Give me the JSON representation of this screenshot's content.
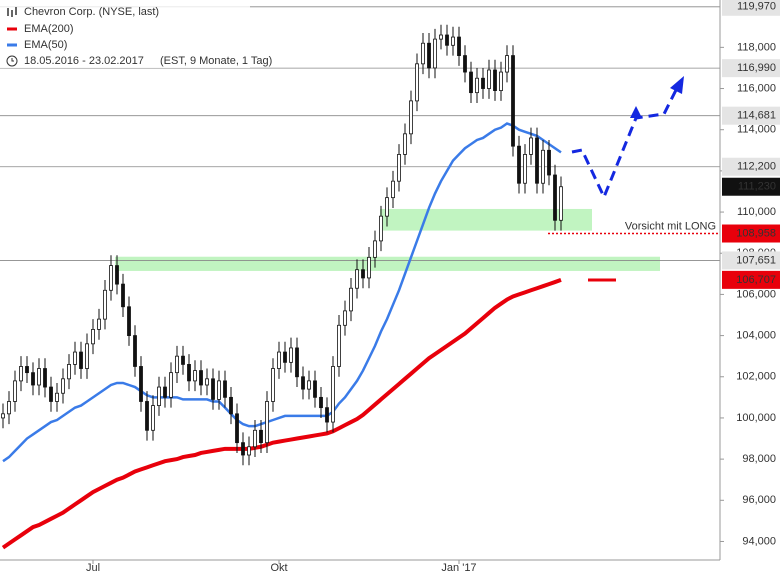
{
  "chart_data": {
    "type": "candlestick",
    "title": "Chevron Corp. (NYSE, last)",
    "subtitle": "18.05.2016 - 23.02.2017",
    "period_note": "(EST, 9 Monate, 1 Tag)",
    "categories": [
      null,
      null,
      null,
      null,
      null,
      null,
      null,
      null,
      null,
      null,
      null,
      null,
      null,
      null,
      null,
      "Jul",
      null,
      null,
      null,
      null,
      null,
      null,
      null,
      null,
      null,
      null,
      null,
      null,
      null,
      null,
      null,
      null,
      null,
      null,
      null,
      null,
      null,
      null,
      null,
      null,
      null,
      null,
      null,
      null,
      null,
      null,
      "Okt",
      null,
      null,
      null,
      null,
      null,
      null,
      null,
      null,
      null,
      null,
      null,
      null,
      null,
      null,
      null,
      null,
      null,
      null,
      null,
      null,
      null,
      null,
      null,
      null,
      null,
      null,
      null,
      null,
      null,
      "Jan '17",
      null,
      null,
      null,
      null,
      null,
      null,
      null,
      null,
      null,
      null,
      null,
      null,
      null,
      null,
      null,
      null,
      null
    ],
    "open": [
      100000,
      100200,
      100800,
      101800,
      102500,
      102200,
      101600,
      102400,
      101500,
      100800,
      101200,
      101900,
      102600,
      103200,
      102400,
      103600,
      104300,
      104800,
      106200,
      107400,
      106500,
      105400,
      104000,
      102500,
      100800,
      99400,
      100600,
      101500,
      101000,
      102200,
      103000,
      102600,
      101800,
      102300,
      101600,
      101900,
      100900,
      101800,
      101000,
      100200,
      98800,
      98200,
      98600,
      99400,
      98800,
      100800,
      102400,
      103200,
      102700,
      103400,
      102000,
      101400,
      101800,
      101000,
      100500,
      99800,
      102500,
      104500,
      105200,
      106300,
      107200,
      106800,
      107800,
      108600,
      109800,
      110700,
      111500,
      112800,
      113800,
      115400,
      117200,
      118200,
      117000,
      118400,
      118600,
      118100,
      118500,
      117600,
      116800,
      115800,
      116500,
      116000,
      116900,
      115900,
      116800,
      117600,
      113200,
      111400,
      112800,
      113600,
      111400,
      113000,
      111800,
      109600
    ],
    "high": [
      100700,
      101300,
      102300,
      103000,
      103000,
      102700,
      102900,
      102900,
      102000,
      101700,
      102400,
      103100,
      103700,
      103700,
      104100,
      104800,
      105300,
      106700,
      107900,
      107900,
      107000,
      105900,
      104500,
      103000,
      101300,
      101100,
      102000,
      102000,
      102700,
      103500,
      103500,
      103100,
      102800,
      102800,
      102400,
      102400,
      102300,
      102300,
      101500,
      100700,
      99300,
      99100,
      99900,
      99900,
      101300,
      102900,
      103700,
      103700,
      103900,
      103900,
      102500,
      102300,
      102300,
      101500,
      101000,
      103000,
      105000,
      105700,
      106800,
      107700,
      107700,
      108300,
      109100,
      110300,
      111200,
      112000,
      113300,
      114300,
      115900,
      117700,
      118700,
      118700,
      118900,
      119100,
      119100,
      119000,
      119000,
      118100,
      117300,
      117000,
      117000,
      117400,
      117400,
      117300,
      118100,
      118100,
      113700,
      113300,
      114100,
      114100,
      113500,
      113500,
      112300,
      111730
    ],
    "low": [
      99500,
      99700,
      100300,
      101300,
      101700,
      101100,
      101100,
      101000,
      100300,
      100300,
      100700,
      101400,
      102100,
      101900,
      101900,
      103100,
      103800,
      104300,
      105700,
      106000,
      104900,
      103500,
      102000,
      100300,
      98900,
      98900,
      100100,
      100500,
      100500,
      101700,
      102100,
      101300,
      101300,
      101100,
      101100,
      100400,
      100400,
      100500,
      99700,
      98300,
      97700,
      97700,
      98100,
      98300,
      98300,
      100300,
      101900,
      102200,
      102200,
      101500,
      100900,
      100900,
      100500,
      100000,
      99300,
      99300,
      102000,
      104000,
      104700,
      105800,
      106300,
      106300,
      107300,
      108100,
      109300,
      110200,
      111000,
      112300,
      113300,
      114900,
      116700,
      116500,
      116500,
      117900,
      117600,
      117600,
      117100,
      116300,
      115300,
      115300,
      115500,
      115500,
      115400,
      115400,
      116300,
      112700,
      110900,
      110900,
      112300,
      110900,
      110900,
      111300,
      109100,
      109100
    ],
    "close": [
      100200,
      100800,
      101800,
      102500,
      102200,
      101600,
      102400,
      101500,
      100800,
      101200,
      101900,
      102600,
      103200,
      102400,
      103600,
      104300,
      104800,
      106200,
      107400,
      106500,
      105400,
      104000,
      102500,
      100800,
      99400,
      100600,
      101500,
      101000,
      102200,
      103000,
      102600,
      101800,
      102300,
      101600,
      101900,
      100900,
      101800,
      101000,
      100200,
      98800,
      98200,
      98600,
      99400,
      98800,
      100800,
      102400,
      103200,
      102700,
      103400,
      102000,
      101400,
      101800,
      101000,
      100500,
      99800,
      102500,
      104500,
      105200,
      106300,
      107200,
      106800,
      107800,
      108600,
      109800,
      110700,
      111500,
      112800,
      113800,
      115400,
      117200,
      118200,
      117000,
      118400,
      118600,
      118100,
      118500,
      117600,
      116800,
      115800,
      116500,
      116000,
      116900,
      115900,
      116800,
      117600,
      113200,
      111400,
      112800,
      113600,
      111400,
      113000,
      111800,
      109600,
      111230
    ],
    "series": [
      {
        "name": "EMA(200)",
        "color": "#e8000b",
        "last_label": "106,707",
        "values": [
          93700,
          93900,
          94100,
          94300,
          94500,
          94700,
          94800,
          94950,
          95100,
          95250,
          95400,
          95600,
          95800,
          96000,
          96200,
          96400,
          96550,
          96700,
          96850,
          97000,
          97100,
          97250,
          97400,
          97500,
          97600,
          97700,
          97800,
          97900,
          97950,
          98000,
          98100,
          98150,
          98200,
          98300,
          98350,
          98400,
          98450,
          98500,
          98500,
          98500,
          98500,
          98500,
          98550,
          98600,
          98700,
          98800,
          98850,
          98900,
          98950,
          99000,
          99050,
          99100,
          99150,
          99200,
          99250,
          99350,
          99500,
          99650,
          99800,
          99950,
          100150,
          100400,
          100650,
          100900,
          101150,
          101400,
          101650,
          101900,
          102150,
          102400,
          102650,
          102900,
          103100,
          103300,
          103500,
          103700,
          103900,
          104100,
          104350,
          104600,
          104850,
          105100,
          105350,
          105550,
          105750,
          105900,
          106000,
          106100,
          106200,
          106300,
          106400,
          106500,
          106600,
          106707
        ]
      },
      {
        "name": "EMA(50)",
        "color": "#3a7be8",
        "values": [
          97900,
          98100,
          98400,
          98700,
          99000,
          99200,
          99400,
          99600,
          99800,
          99900,
          100100,
          100300,
          100500,
          100600,
          100800,
          101000,
          101200,
          101400,
          101600,
          101700,
          101700,
          101600,
          101500,
          101300,
          101100,
          101000,
          101000,
          101000,
          101000,
          101000,
          100900,
          100900,
          100900,
          100900,
          100900,
          100800,
          100800,
          100500,
          100200,
          99900,
          99700,
          99600,
          99600,
          99700,
          99800,
          99900,
          100000,
          100100,
          100100,
          100100,
          100100,
          100100,
          100100,
          100100,
          100100,
          100300,
          100700,
          101000,
          101400,
          101800,
          102300,
          102900,
          103500,
          104200,
          104800,
          105500,
          106200,
          107000,
          107800,
          108600,
          109400,
          110200,
          110900,
          111500,
          112000,
          112500,
          112800,
          113100,
          113300,
          113500,
          113600,
          113800,
          114000,
          114100,
          114300,
          114200,
          114000,
          113900,
          113800,
          113700,
          113500,
          113300,
          113100,
          112900
        ]
      }
    ],
    "ylim": [
      93100,
      120300
    ],
    "yticks": [
      {
        "value": 94000,
        "label": "94,000"
      },
      {
        "value": 96000,
        "label": "96,000"
      },
      {
        "value": 98000,
        "label": "98,000"
      },
      {
        "value": 100000,
        "label": "100,000"
      },
      {
        "value": 102000,
        "label": "102,000"
      },
      {
        "value": 104000,
        "label": "104,000"
      },
      {
        "value": 106000,
        "label": "106,000"
      },
      {
        "value": 108000,
        "label": "108,000"
      },
      {
        "value": 110000,
        "label": "110,000"
      },
      {
        "value": 112000,
        "label": "112,000"
      },
      {
        "value": 114000,
        "label": "114,000"
      },
      {
        "value": 116000,
        "label": "116,000"
      },
      {
        "value": 118000,
        "label": "118,000"
      }
    ],
    "levels": [
      {
        "value": 119970,
        "label": "119,970"
      },
      {
        "value": 116990,
        "label": "116,990"
      },
      {
        "value": 114681,
        "label": "114,681"
      },
      {
        "value": 112200,
        "label": "112,200"
      },
      {
        "value": 107651,
        "label": "107,651"
      }
    ],
    "last_price": {
      "value": 111230,
      "label": "111,230"
    },
    "alert": {
      "value": 108958,
      "label": "108,958",
      "text": "Vorsicht mit LONG"
    },
    "zones": [
      {
        "from": 109100,
        "to": 110150
      },
      {
        "from": 107140,
        "to": 107830
      }
    ],
    "zone_color": "#b6f2b6"
  }
}
